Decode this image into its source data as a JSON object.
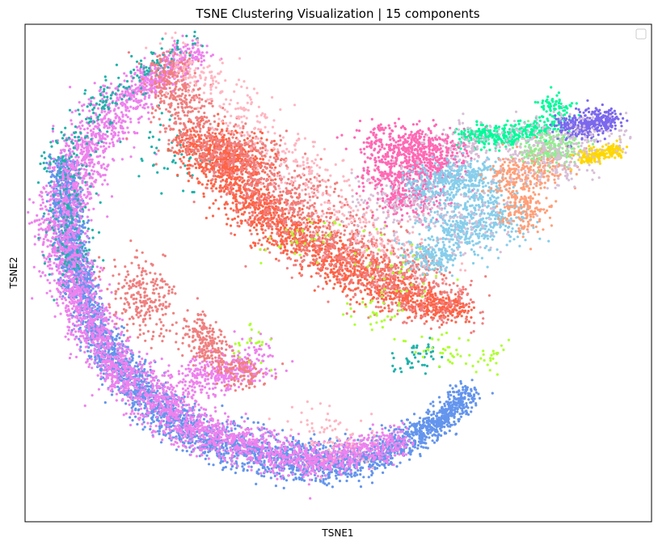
{
  "chart_data": {
    "type": "scatter",
    "title": "TSNE Clustering Visualization | 15 components",
    "xlabel": "TSNE1",
    "ylabel": "TSNE2",
    "xlim": [
      -100,
      100
    ],
    "ylim": [
      -100,
      100
    ],
    "ticks_visible": false,
    "grid": false,
    "legend": {
      "placement": "top-right",
      "entries": []
    },
    "clusters": [
      {
        "color": "#6495ED",
        "points_per_unit": 18,
        "segments": [
          [
            -88,
            45,
            -85,
            5,
            3
          ],
          [
            -85,
            5,
            -77,
            -25,
            3
          ],
          [
            -77,
            -25,
            -65,
            -45,
            4
          ],
          [
            -65,
            -45,
            -45,
            -66,
            5
          ],
          [
            -45,
            -66,
            -15,
            -76,
            5
          ],
          [
            -15,
            -76,
            10,
            -75,
            5
          ],
          [
            10,
            -75,
            30,
            -62,
            4
          ],
          [
            30,
            -62,
            42,
            -48,
            3
          ]
        ]
      },
      {
        "color": "#EE82EE",
        "points_per_unit": 14,
        "segments": [
          [
            -45,
            90,
            -68,
            70,
            4
          ],
          [
            -68,
            70,
            -80,
            50,
            6
          ],
          [
            -80,
            50,
            -90,
            20,
            6
          ],
          [
            -90,
            20,
            -82,
            -15,
            5
          ],
          [
            -82,
            -15,
            -70,
            -40,
            5
          ],
          [
            -70,
            -40,
            -45,
            -64,
            6
          ],
          [
            -45,
            -64,
            -10,
            -76,
            5
          ],
          [
            -10,
            -76,
            20,
            -68,
            4
          ],
          [
            -50,
            -45,
            -25,
            -35,
            5
          ]
        ]
      },
      {
        "color": "#20B2AA",
        "points_per_unit": 3,
        "segments": [
          [
            -48,
            93,
            -62,
            82,
            3
          ],
          [
            -62,
            82,
            -76,
            68,
            4
          ],
          [
            -76,
            68,
            -88,
            45,
            5
          ],
          [
            -88,
            45,
            -85,
            0,
            6
          ],
          [
            -55,
            55,
            -48,
            40,
            8
          ],
          [
            18,
            -37,
            32,
            -31,
            3
          ]
        ]
      },
      {
        "color": "#FF6347",
        "points_per_unit": 16,
        "segments": [
          [
            -46,
            55,
            -35,
            40,
            6
          ],
          [
            -35,
            40,
            -22,
            22,
            6
          ],
          [
            -22,
            22,
            -5,
            8,
            6
          ],
          [
            -5,
            8,
            15,
            -5,
            6
          ],
          [
            15,
            -5,
            30,
            -13,
            5
          ],
          [
            30,
            -13,
            40,
            -15,
            3
          ],
          [
            -40,
            48,
            -25,
            45,
            6
          ]
        ]
      },
      {
        "color": "#F08080",
        "points_per_unit": 12,
        "segments": [
          [
            -52,
            60,
            -30,
            45,
            8
          ],
          [
            -30,
            45,
            -10,
            20,
            10
          ],
          [
            -10,
            20,
            15,
            0,
            10
          ],
          [
            15,
            0,
            35,
            -12,
            8
          ],
          [
            -55,
            85,
            -48,
            65,
            5
          ],
          [
            -65,
            0,
            -60,
            -20,
            6
          ],
          [
            -45,
            -20,
            -40,
            -35,
            4
          ],
          [
            -35,
            -38,
            -27,
            -42,
            4
          ]
        ]
      },
      {
        "color": "#FFB6C1",
        "points_per_unit": 4,
        "segments": [
          [
            -42,
            80,
            -28,
            60,
            6
          ],
          [
            -28,
            60,
            -10,
            40,
            8
          ],
          [
            -10,
            40,
            10,
            15,
            8
          ],
          [
            10,
            15,
            30,
            0,
            8
          ],
          [
            -52,
            90,
            -45,
            75,
            4
          ],
          [
            -10,
            -60,
            5,
            -72,
            6
          ]
        ]
      },
      {
        "color": "#ADFF2F",
        "points_per_unit": 2,
        "segments": [
          [
            -20,
            10,
            -5,
            18,
            6
          ],
          [
            10,
            10,
            25,
            -5,
            8
          ],
          [
            5,
            -15,
            20,
            -20,
            5
          ],
          [
            25,
            -28,
            40,
            -33,
            4
          ],
          [
            -30,
            -25,
            -25,
            -35,
            4
          ],
          [
            45,
            -37,
            52,
            -28,
            3
          ]
        ]
      },
      {
        "color": "#FF69B4",
        "points_per_unit": 14,
        "segments": [
          [
            10,
            52,
            40,
            50,
            5
          ],
          [
            12,
            40,
            36,
            42,
            5
          ],
          [
            15,
            30,
            30,
            30,
            5
          ]
        ]
      },
      {
        "color": "#87CEEB",
        "points_per_unit": 16,
        "segments": [
          [
            25,
            35,
            48,
            40,
            5
          ],
          [
            40,
            30,
            55,
            20,
            7
          ],
          [
            32,
            20,
            45,
            15,
            5
          ],
          [
            25,
            8,
            35,
            5,
            4
          ]
        ]
      },
      {
        "color": "#00FA9A",
        "points_per_unit": 12,
        "segments": [
          [
            40,
            55,
            55,
            55,
            3
          ],
          [
            55,
            55,
            70,
            60,
            3
          ],
          [
            67,
            65,
            72,
            68,
            3
          ]
        ]
      },
      {
        "color": "#FFA07A",
        "points_per_unit": 16,
        "segments": [
          [
            52,
            38,
            70,
            45,
            5
          ],
          [
            56,
            30,
            62,
            22,
            5
          ]
        ]
      },
      {
        "color": "#90EE90",
        "points_per_unit": 18,
        "segments": [
          [
            62,
            48,
            74,
            52,
            4
          ]
        ]
      },
      {
        "color": "#7B68EE",
        "points_per_unit": 22,
        "segments": [
          [
            72,
            58,
            88,
            62,
            3
          ]
        ]
      },
      {
        "color": "#FFD700",
        "points_per_unit": 14,
        "segments": [
          [
            78,
            46,
            90,
            50,
            2
          ]
        ]
      },
      {
        "color": "#D8BFD8",
        "points_per_unit": 5,
        "segments": [
          [
            35,
            50,
            88,
            56,
            6
          ],
          [
            10,
            28,
            50,
            20,
            8
          ],
          [
            60,
            42,
            80,
            44,
            5
          ]
        ]
      }
    ]
  }
}
